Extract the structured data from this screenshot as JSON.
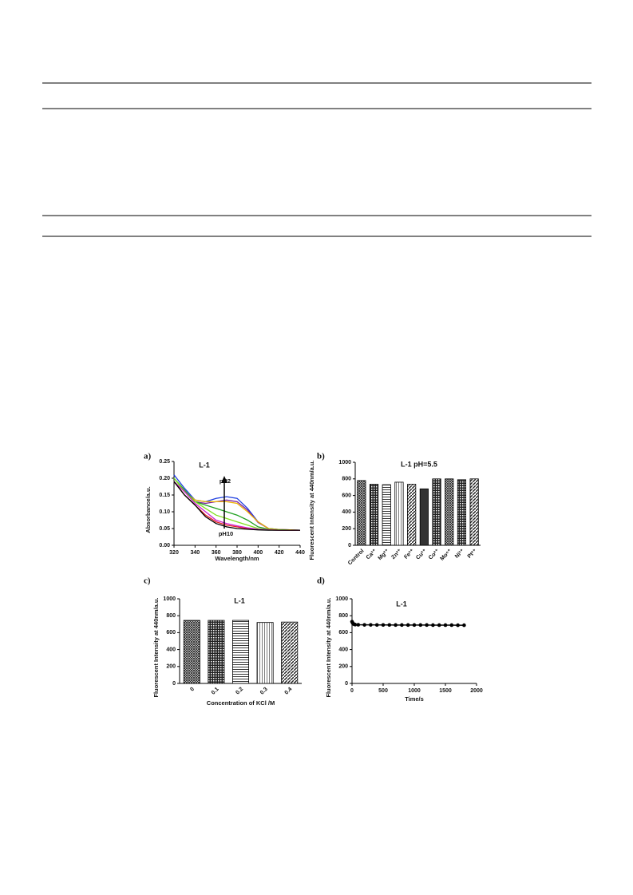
{
  "chart_data": [
    {
      "type": "line",
      "panel_label": "a)",
      "title": "L-1",
      "x_label": "Wavelength/nm",
      "y_label": "Absorbance/a.u.",
      "annotations": [
        "pH2",
        "pH10"
      ],
      "x": [
        320,
        330,
        340,
        350,
        360,
        370,
        380,
        390,
        400,
        410,
        420,
        430,
        440
      ],
      "xlim": [
        320,
        440
      ],
      "xticks": [
        320,
        340,
        360,
        380,
        400,
        420,
        440
      ],
      "ylim": [
        0,
        0.25
      ],
      "yticks": [
        {
          "value": 0,
          "label": "0.00"
        },
        0.05,
        {
          "value": 0.1,
          "label": "0.10"
        },
        0.15,
        {
          "value": 0.2,
          "label": "0.20"
        },
        0.25
      ],
      "series": [
        {
          "color": "#1f3fe0",
          "values": [
            0.21,
            0.17,
            0.135,
            0.13,
            0.14,
            0.145,
            0.14,
            0.11,
            0.07,
            0.05,
            0.047,
            0.046,
            0.045
          ]
        },
        {
          "color": "#7a1fa0",
          "values": [
            0.19,
            0.16,
            0.13,
            0.125,
            0.13,
            0.135,
            0.13,
            0.105,
            0.068,
            0.05,
            0.047,
            0.046,
            0.045
          ]
        },
        {
          "color": "#f0b400",
          "values": [
            0.19,
            0.16,
            0.135,
            0.13,
            0.13,
            0.13,
            0.125,
            0.1,
            0.07,
            0.05,
            0.047,
            0.046,
            0.045
          ]
        },
        {
          "color": "#20a020",
          "values": [
            0.2,
            0.165,
            0.13,
            0.12,
            0.11,
            0.1,
            0.09,
            0.075,
            0.055,
            0.048,
            0.046,
            0.045,
            0.045
          ]
        },
        {
          "color": "#80e020",
          "values": [
            0.2,
            0.16,
            0.13,
            0.11,
            0.09,
            0.08,
            0.07,
            0.06,
            0.05,
            0.047,
            0.046,
            0.045,
            0.045
          ]
        },
        {
          "color": "#e02020",
          "values": [
            0.19,
            0.15,
            0.12,
            0.09,
            0.07,
            0.06,
            0.055,
            0.05,
            0.047,
            0.046,
            0.045,
            0.045,
            0.045
          ]
        },
        {
          "color": "#d020d0",
          "values": [
            0.19,
            0.16,
            0.125,
            0.1,
            0.075,
            0.065,
            0.058,
            0.052,
            0.048,
            0.046,
            0.045,
            0.045,
            0.045
          ]
        },
        {
          "color": "#000000",
          "values": [
            0.19,
            0.15,
            0.12,
            0.085,
            0.065,
            0.055,
            0.05,
            0.048,
            0.046,
            0.045,
            0.045,
            0.045,
            0.045
          ]
        }
      ]
    },
    {
      "type": "bar",
      "panel_label": "b)",
      "title": "L-1  pH=5.5",
      "y_label": "Fluorescent Intensity at 440nm/a.u.",
      "categories": [
        "Control",
        "Ca²⁺",
        "Mg²⁺",
        "Zn²⁺",
        "Fe³⁺",
        "Cu²⁺",
        "Co²⁺",
        "Mo⁶⁺",
        "Ni²⁺",
        "Pt²⁺"
      ],
      "values": [
        780,
        735,
        730,
        760,
        735,
        680,
        800,
        800,
        790,
        800
      ],
      "ylim": [
        0,
        1000
      ],
      "yticks": [
        0,
        200,
        400,
        600,
        800,
        1000
      ]
    },
    {
      "type": "bar",
      "panel_label": "c)",
      "title": "L-1",
      "x_label": "Concentration of KCl /M",
      "y_label": "Fluorescent Intensity at 440nm/a.u.",
      "categories": [
        "0",
        "0.1",
        "0.2",
        "0.3",
        "0.4"
      ],
      "values": [
        745,
        745,
        745,
        720,
        725
      ],
      "ylim": [
        0,
        1000
      ],
      "yticks": [
        0,
        200,
        400,
        600,
        800,
        1000
      ]
    },
    {
      "type": "line",
      "markers": true,
      "panel_label": "d)",
      "title": "L-1",
      "x_label": "Time/s",
      "y_label": "Fluorescent Intensity at 440nm/a.u.",
      "x": [
        0,
        10,
        20,
        30,
        50,
        100,
        200,
        300,
        400,
        500,
        600,
        700,
        800,
        900,
        1000,
        1100,
        1200,
        1300,
        1400,
        1500,
        1600,
        1700,
        1800
      ],
      "xlim": [
        0,
        2000
      ],
      "xticks": [
        0,
        500,
        1000,
        1500,
        2000
      ],
      "ylim": [
        0,
        1000
      ],
      "yticks": [
        0,
        200,
        400,
        600,
        800,
        1000
      ],
      "series": [
        {
          "color": "#000000",
          "values": [
            730,
            715,
            705,
            700,
            695,
            693,
            692,
            692,
            691,
            691,
            691,
            690,
            690,
            690,
            690,
            690,
            690,
            689,
            689,
            689,
            689,
            688,
            688
          ]
        }
      ]
    }
  ]
}
